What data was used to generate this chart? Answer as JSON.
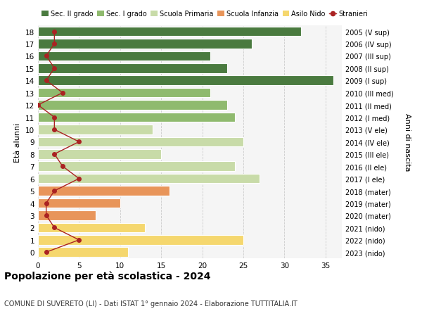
{
  "ages": [
    0,
    1,
    2,
    3,
    4,
    5,
    6,
    7,
    8,
    9,
    10,
    11,
    12,
    13,
    14,
    15,
    16,
    17,
    18
  ],
  "bar_values": [
    11,
    25,
    13,
    7,
    10,
    16,
    27,
    24,
    15,
    25,
    14,
    24,
    23,
    21,
    36,
    23,
    21,
    26,
    32
  ],
  "bar_colors": [
    "#f5d76e",
    "#f5d76e",
    "#f5d76e",
    "#e8955a",
    "#e8955a",
    "#e8955a",
    "#c8dba8",
    "#c8dba8",
    "#c8dba8",
    "#c8dba8",
    "#c8dba8",
    "#8fba6e",
    "#8fba6e",
    "#8fba6e",
    "#4a7a3f",
    "#4a7a3f",
    "#4a7a3f",
    "#4a7a3f",
    "#4a7a3f"
  ],
  "stranieri_values": [
    1,
    5,
    2,
    1,
    1,
    2,
    5,
    3,
    2,
    5,
    2,
    2,
    0,
    3,
    1,
    2,
    1,
    2,
    2
  ],
  "right_labels": [
    "2023 (nido)",
    "2022 (nido)",
    "2021 (nido)",
    "2020 (mater)",
    "2019 (mater)",
    "2018 (mater)",
    "2017 (I ele)",
    "2016 (II ele)",
    "2015 (III ele)",
    "2014 (IV ele)",
    "2013 (V ele)",
    "2012 (I med)",
    "2011 (II med)",
    "2010 (III med)",
    "2009 (I sup)",
    "2008 (II sup)",
    "2007 (III sup)",
    "2006 (IV sup)",
    "2005 (V sup)"
  ],
  "legend_labels": [
    "Sec. II grado",
    "Sec. I grado",
    "Scuola Primaria",
    "Scuola Infanzia",
    "Asilo Nido",
    "Stranieri"
  ],
  "legend_colors": [
    "#4a7a3f",
    "#8fba6e",
    "#c8dba8",
    "#e8955a",
    "#f5d76e",
    "#aa2222"
  ],
  "ylabel": "Età alunni",
  "right_ylabel": "Anni di nascita",
  "title": "Popolazione per età scolastica - 2024",
  "subtitle": "COMUNE DI SUVERETO (LI) - Dati ISTAT 1° gennaio 2024 - Elaborazione TUTTITALIA.IT",
  "xlim": [
    0,
    37
  ],
  "ylim": [
    -0.5,
    18.5
  ],
  "stranieri_color": "#aa2222",
  "grid_color": "#cccccc",
  "bg_color": "#f5f5f5"
}
